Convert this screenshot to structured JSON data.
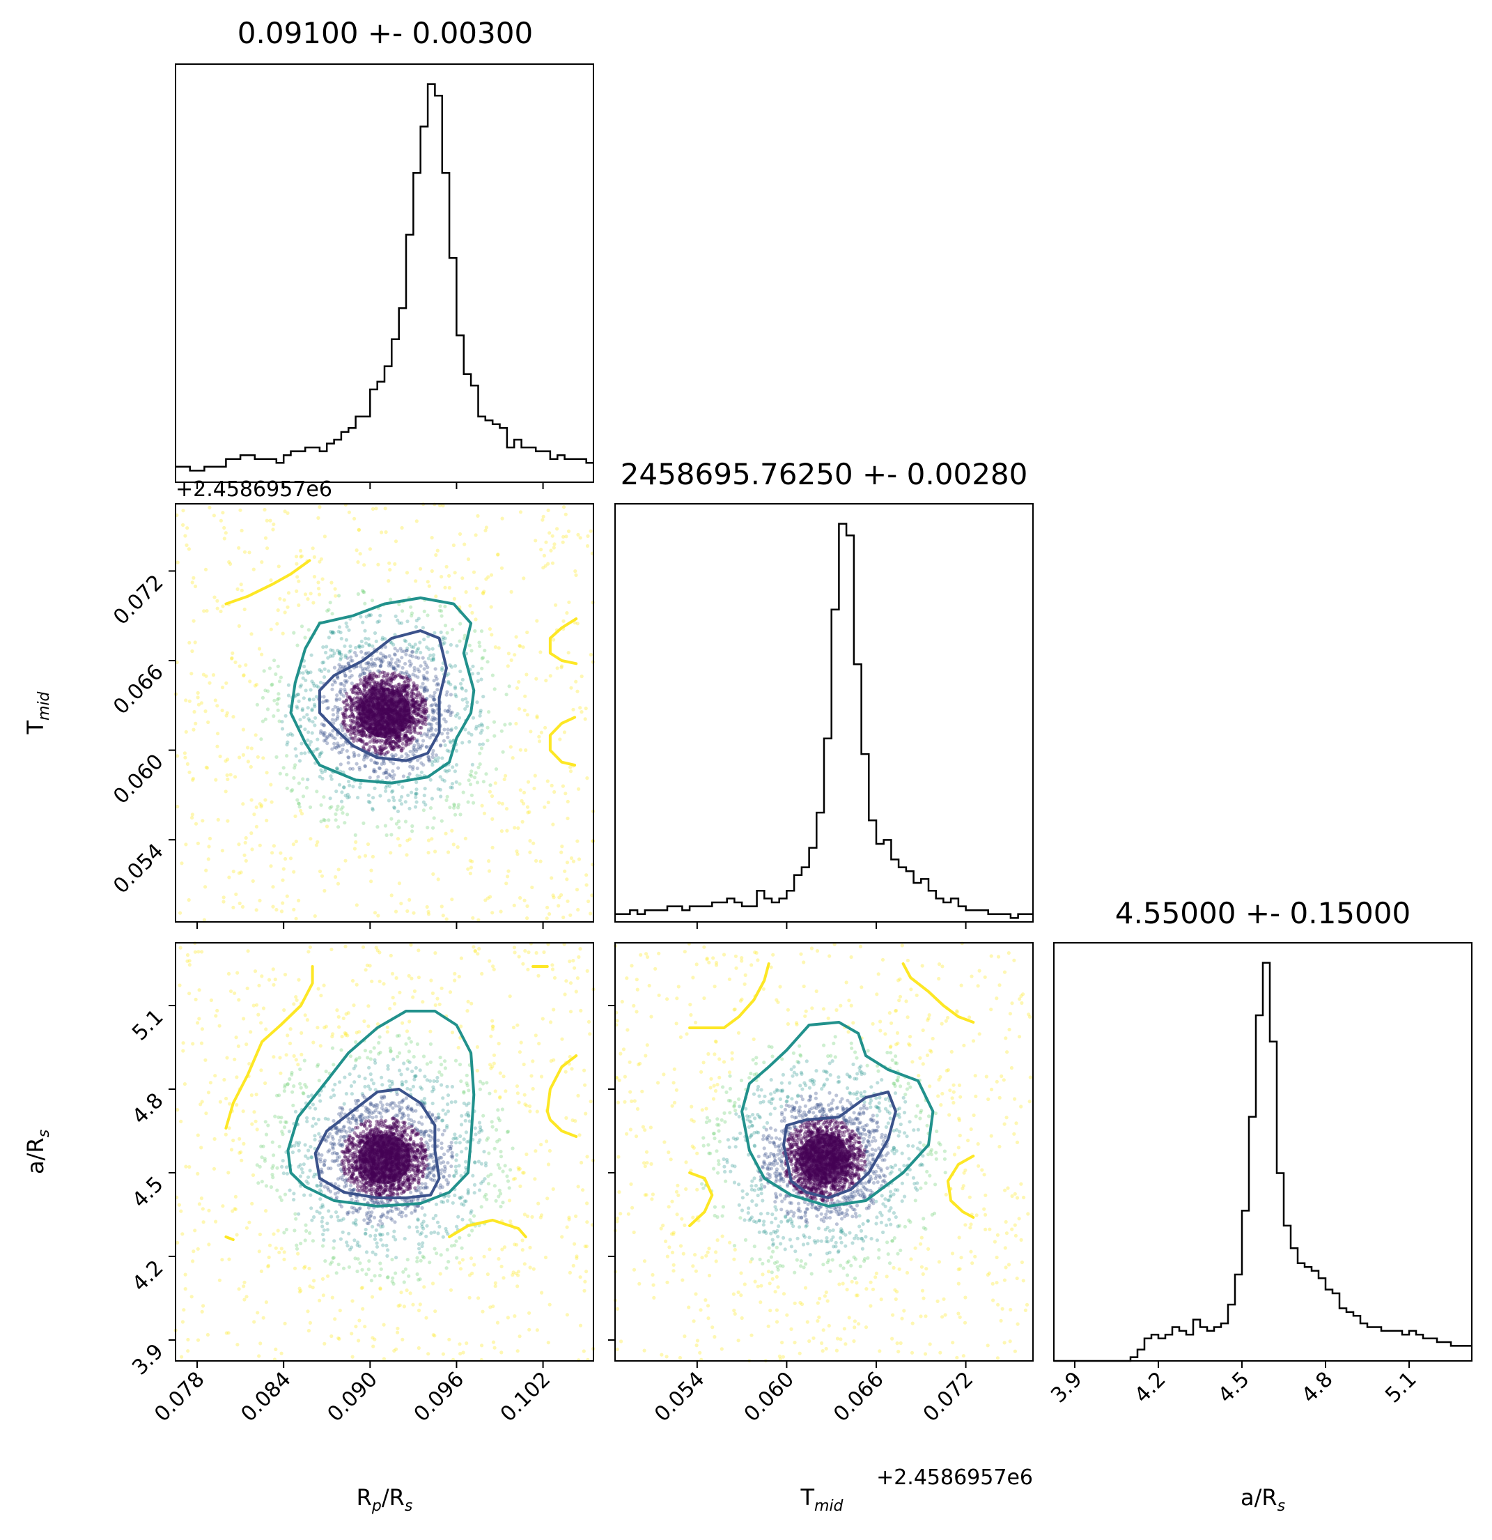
{
  "chart_data": [
    {
      "type": "histogram",
      "panel": "Rp/Rs marginal",
      "title": "0.09100 +- 0.00300",
      "xlim": [
        0.0765,
        0.1055
      ],
      "x_ticks": [
        "0.078",
        "0.084",
        "0.090",
        "0.096",
        "0.102"
      ],
      "offset_label": "+2.4586957e6",
      "bin_edges_start": 0.0765,
      "bin_width": 0.0005,
      "counts": [
        4,
        4,
        3,
        3,
        4,
        4,
        4,
        6,
        6,
        7,
        7,
        6,
        6,
        6,
        5,
        7,
        8,
        8,
        9,
        9,
        8,
        10,
        11,
        13,
        14,
        17,
        17,
        24,
        26,
        30,
        37,
        45,
        64,
        80,
        92,
        103,
        100,
        80,
        58,
        38,
        28,
        25,
        17,
        16,
        15,
        14,
        9,
        11,
        9,
        9,
        8,
        8,
        6,
        7,
        6,
        6,
        6,
        5,
        5,
        4
      ]
    },
    {
      "type": "histogram",
      "panel": "T_mid marginal",
      "title": "2458695.76250 +- 0.00280",
      "xlim": [
        0.0485,
        0.0765
      ],
      "bin_edges_start": 0.0485,
      "bin_width": 0.0005,
      "counts": [
        2,
        2,
        3,
        2,
        3,
        3,
        3,
        4,
        4,
        3,
        4,
        4,
        4,
        5,
        5,
        6,
        5,
        4,
        4,
        8,
        6,
        5,
        6,
        8,
        12,
        14,
        19,
        28,
        47,
        80,
        102,
        99,
        66,
        43,
        26,
        20,
        21,
        16,
        14,
        13,
        10,
        11,
        8,
        6,
        5,
        6,
        4,
        3,
        3,
        3,
        2,
        2,
        2,
        1,
        2,
        2,
        1,
        1
      ]
    },
    {
      "type": "histogram",
      "panel": "a/Rs marginal",
      "title": "4.55000 +- 0.15000",
      "xlim": [
        3.825,
        5.325
      ],
      "x_ticks": [
        "3.9",
        "4.2",
        "4.5",
        "4.8",
        "5.1"
      ],
      "xlabel": "a/R",
      "xlabel_sub": "s",
      "bin_edges_start": 3.825,
      "bin_width": 0.025,
      "counts": [
        0,
        0,
        0,
        0,
        0,
        0,
        0,
        0,
        0,
        0,
        0,
        1,
        3,
        6,
        7,
        6,
        7,
        9,
        8,
        7,
        11,
        9,
        8,
        9,
        10,
        15,
        23,
        40,
        65,
        92,
        106,
        85,
        50,
        36,
        30,
        26,
        25,
        24,
        22,
        19,
        18,
        14,
        13,
        12,
        10,
        9,
        9,
        8,
        8,
        8,
        7,
        8,
        7,
        6,
        6,
        5,
        5,
        4,
        4,
        4
      ]
    },
    {
      "type": "scatter",
      "panel": "Tmid vs Rp/Rs",
      "x_param": "Rp/Rs",
      "y_param": "T_mid",
      "xlim": [
        0.0765,
        0.1055
      ],
      "ylim": [
        0.0485,
        0.0765
      ],
      "y_ticks": [
        "0.054",
        "0.060",
        "0.066",
        "0.072"
      ],
      "ylabel": "T",
      "ylabel_sub": "mid",
      "offset_label": "+2.4586957e6",
      "center": [
        0.091,
        0.0625
      ],
      "sigma": [
        0.003,
        0.0028
      ],
      "contours": [
        {
          "color": "#3b528b",
          "points": [
            [
              0.0875,
              0.0615
            ],
            [
              0.0888,
              0.0603
            ],
            [
              0.0905,
              0.0595
            ],
            [
              0.0925,
              0.0593
            ],
            [
              0.094,
              0.0598
            ],
            [
              0.0948,
              0.0612
            ],
            [
              0.0948,
              0.0635
            ],
            [
              0.0953,
              0.0655
            ],
            [
              0.0948,
              0.0675
            ],
            [
              0.0935,
              0.068
            ],
            [
              0.0915,
              0.0675
            ],
            [
              0.0895,
              0.066
            ],
            [
              0.0875,
              0.065
            ],
            [
              0.0865,
              0.064
            ],
            [
              0.0865,
              0.0625
            ],
            [
              0.0875,
              0.0615
            ]
          ]
        },
        {
          "color": "#21918c",
          "points": [
            [
              0.0855,
              0.0605
            ],
            [
              0.0865,
              0.059
            ],
            [
              0.089,
              0.058
            ],
            [
              0.0915,
              0.0578
            ],
            [
              0.094,
              0.0582
            ],
            [
              0.0955,
              0.0592
            ],
            [
              0.096,
              0.0608
            ],
            [
              0.097,
              0.0625
            ],
            [
              0.0972,
              0.064
            ],
            [
              0.0965,
              0.0665
            ],
            [
              0.097,
              0.0685
            ],
            [
              0.0958,
              0.0698
            ],
            [
              0.0935,
              0.0702
            ],
            [
              0.091,
              0.0698
            ],
            [
              0.0888,
              0.069
            ],
            [
              0.0865,
              0.0685
            ],
            [
              0.0855,
              0.0668
            ],
            [
              0.0848,
              0.0645
            ],
            [
              0.0845,
              0.0625
            ],
            [
              0.0855,
              0.0605
            ]
          ]
        },
        {
          "color": "#fde725",
          "points": [
            [
              0.08,
              0.0698
            ],
            [
              0.0815,
              0.0703
            ],
            [
              0.0832,
              0.0711
            ],
            [
              0.0845,
              0.0718
            ],
            [
              0.0858,
              0.0727
            ]
          ]
        },
        {
          "color": "#fde725",
          "points": [
            [
              0.1043,
              0.0688
            ],
            [
              0.1033,
              0.0682
            ],
            [
              0.1025,
              0.0675
            ],
            [
              0.1025,
              0.0665
            ],
            [
              0.1033,
              0.066
            ],
            [
              0.1043,
              0.0658
            ]
          ]
        },
        {
          "color": "#fde725",
          "points": [
            [
              0.1042,
              0.0622
            ],
            [
              0.1033,
              0.0618
            ],
            [
              0.1025,
              0.061
            ],
            [
              0.1025,
              0.06
            ],
            [
              0.1033,
              0.0592
            ],
            [
              0.1042,
              0.059
            ]
          ]
        }
      ]
    },
    {
      "type": "scatter",
      "panel": "a/Rs vs Rp/Rs",
      "x_param": "Rp/Rs",
      "y_param": "a/Rs",
      "xlim": [
        0.0765,
        0.1055
      ],
      "ylim": [
        3.825,
        5.325
      ],
      "y_ticks": [
        "3.9",
        "4.2",
        "4.5",
        "4.8",
        "5.1"
      ],
      "x_ticks": [
        "0.078",
        "0.084",
        "0.090",
        "0.096",
        "0.102"
      ],
      "ylabel": "a/R",
      "ylabel_sub": "s",
      "xlabel": "R",
      "xlabel_sub1": "p",
      "xlabel_mid": "/R",
      "xlabel_sub2": "s",
      "center": [
        0.091,
        4.55
      ],
      "sigma": [
        0.003,
        0.15
      ],
      "contours": [
        {
          "color": "#3b528b",
          "points": [
            [
              0.0865,
              4.48
            ],
            [
              0.0882,
              4.43
            ],
            [
              0.0905,
              4.41
            ],
            [
              0.0925,
              4.41
            ],
            [
              0.0942,
              4.42
            ],
            [
              0.0948,
              4.48
            ],
            [
              0.0945,
              4.58
            ],
            [
              0.0945,
              4.67
            ],
            [
              0.0935,
              4.75
            ],
            [
              0.092,
              4.8
            ],
            [
              0.0905,
              4.79
            ],
            [
              0.089,
              4.73
            ],
            [
              0.087,
              4.65
            ],
            [
              0.0862,
              4.57
            ],
            [
              0.0865,
              4.48
            ]
          ]
        },
        {
          "color": "#21918c",
          "points": [
            [
              0.0855,
              4.45
            ],
            [
              0.0875,
              4.4
            ],
            [
              0.0905,
              4.38
            ],
            [
              0.0935,
              4.39
            ],
            [
              0.0955,
              4.43
            ],
            [
              0.0968,
              4.5
            ],
            [
              0.097,
              4.62
            ],
            [
              0.0972,
              4.78
            ],
            [
              0.097,
              4.93
            ],
            [
              0.096,
              5.03
            ],
            [
              0.0945,
              5.08
            ],
            [
              0.0925,
              5.08
            ],
            [
              0.0905,
              5.02
            ],
            [
              0.0885,
              4.93
            ],
            [
              0.087,
              4.83
            ],
            [
              0.085,
              4.7
            ],
            [
              0.0843,
              4.58
            ],
            [
              0.0845,
              4.5
            ],
            [
              0.0855,
              4.45
            ]
          ]
        },
        {
          "color": "#fde725",
          "points": [
            [
              0.08,
              4.66
            ],
            [
              0.0805,
              4.75
            ],
            [
              0.0815,
              4.85
            ],
            [
              0.0825,
              4.97
            ],
            [
              0.0838,
              5.03
            ],
            [
              0.0852,
              5.1
            ],
            [
              0.086,
              5.18
            ],
            [
              0.086,
              5.24
            ]
          ]
        },
        {
          "color": "#fde725",
          "points": [
            [
              0.0955,
              4.27
            ],
            [
              0.0968,
              4.31
            ],
            [
              0.0985,
              4.33
            ],
            [
              0.1003,
              4.3
            ],
            [
              0.1008,
              4.27
            ]
          ]
        },
        {
          "color": "#fde725",
          "points": [
            [
              0.1043,
              4.92
            ],
            [
              0.1033,
              4.88
            ],
            [
              0.1025,
              4.8
            ],
            [
              0.1023,
              4.72
            ],
            [
              0.1025,
              4.69
            ],
            [
              0.1033,
              4.65
            ],
            [
              0.1043,
              4.63
            ]
          ]
        },
        {
          "color": "#fde725",
          "points": [
            [
              0.1013,
              5.24
            ],
            [
              0.1023,
              5.24
            ]
          ]
        },
        {
          "color": "#fde725",
          "points": [
            [
              0.08,
              4.27
            ],
            [
              0.0805,
              4.26
            ]
          ]
        }
      ]
    },
    {
      "type": "scatter",
      "panel": "a/Rs vs Tmid",
      "x_param": "T_mid",
      "y_param": "a/Rs",
      "xlim": [
        0.0485,
        0.0765
      ],
      "ylim": [
        3.825,
        5.325
      ],
      "x_ticks": [
        "0.054",
        "0.060",
        "0.066",
        "0.072"
      ],
      "xlabel": "T",
      "xlabel_sub": "mid",
      "offset_label": "+2.4586957e6",
      "center": [
        0.0625,
        4.55
      ],
      "sigma": [
        0.0028,
        0.15
      ],
      "contours": [
        {
          "color": "#3b528b",
          "points": [
            [
              0.06,
              4.55
            ],
            [
              0.0603,
              4.47
            ],
            [
              0.0613,
              4.43
            ],
            [
              0.0628,
              4.41
            ],
            [
              0.0643,
              4.44
            ],
            [
              0.0655,
              4.5
            ],
            [
              0.0668,
              4.62
            ],
            [
              0.0673,
              4.72
            ],
            [
              0.0668,
              4.79
            ],
            [
              0.0653,
              4.77
            ],
            [
              0.0635,
              4.7
            ],
            [
              0.0613,
              4.69
            ],
            [
              0.06,
              4.67
            ],
            [
              0.0598,
              4.6
            ],
            [
              0.06,
              4.55
            ]
          ]
        },
        {
          "color": "#21918c",
          "points": [
            [
              0.0575,
              4.58
            ],
            [
              0.0585,
              4.48
            ],
            [
              0.0603,
              4.42
            ],
            [
              0.0628,
              4.38
            ],
            [
              0.0653,
              4.4
            ],
            [
              0.0678,
              4.5
            ],
            [
              0.0695,
              4.6
            ],
            [
              0.0698,
              4.72
            ],
            [
              0.0688,
              4.83
            ],
            [
              0.0668,
              4.87
            ],
            [
              0.0653,
              4.92
            ],
            [
              0.0648,
              5.0
            ],
            [
              0.0635,
              5.04
            ],
            [
              0.0615,
              5.03
            ],
            [
              0.06,
              4.94
            ],
            [
              0.0588,
              4.88
            ],
            [
              0.0575,
              4.82
            ],
            [
              0.057,
              4.72
            ],
            [
              0.0575,
              4.58
            ]
          ]
        },
        {
          "color": "#fde725",
          "points": [
            [
              0.0535,
              5.02
            ],
            [
              0.0548,
              5.02
            ],
            [
              0.0558,
              5.02
            ],
            [
              0.0568,
              5.06
            ],
            [
              0.0578,
              5.12
            ],
            [
              0.0585,
              5.19
            ],
            [
              0.0588,
              5.25
            ]
          ]
        },
        {
          "color": "#fde725",
          "points": [
            [
              0.0678,
              5.25
            ],
            [
              0.0683,
              5.2
            ],
            [
              0.0695,
              5.15
            ],
            [
              0.0705,
              5.1
            ],
            [
              0.0715,
              5.06
            ],
            [
              0.0725,
              5.04
            ]
          ]
        },
        {
          "color": "#fde725",
          "points": [
            [
              0.0535,
              4.31
            ],
            [
              0.0545,
              4.36
            ],
            [
              0.055,
              4.42
            ],
            [
              0.0545,
              4.48
            ],
            [
              0.0535,
              4.5
            ]
          ]
        },
        {
          "color": "#fde725",
          "points": [
            [
              0.0725,
              4.56
            ],
            [
              0.0715,
              4.53
            ],
            [
              0.0708,
              4.47
            ],
            [
              0.071,
              4.4
            ],
            [
              0.0718,
              4.36
            ],
            [
              0.0725,
              4.34
            ]
          ]
        }
      ]
    }
  ]
}
